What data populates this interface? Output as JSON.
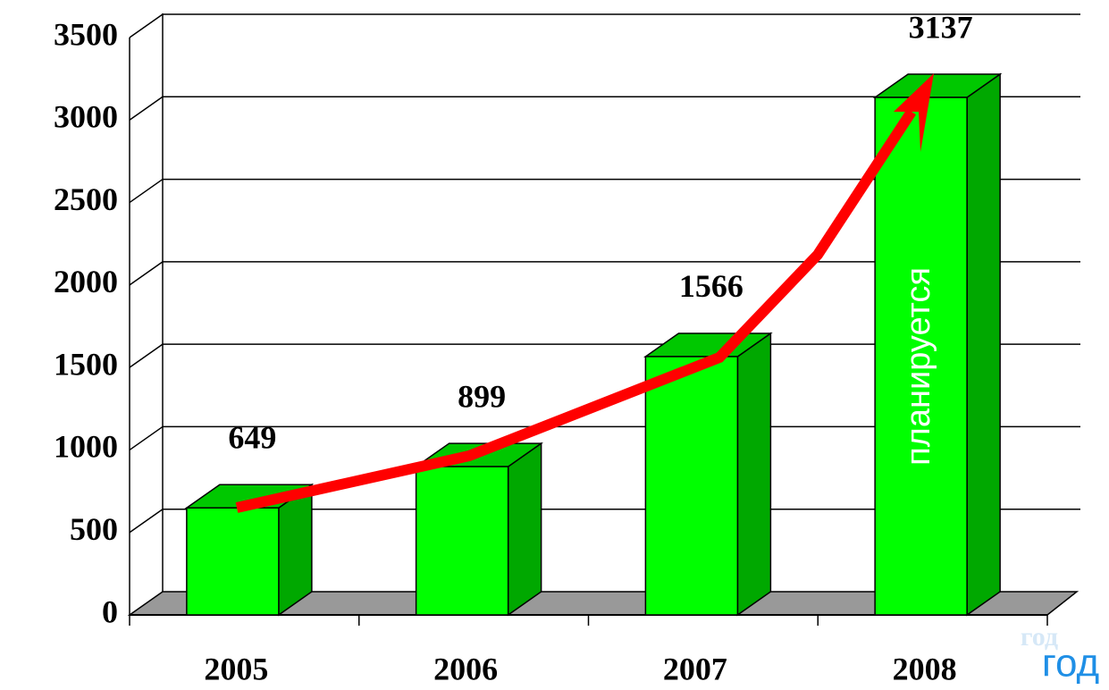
{
  "chart_data": {
    "type": "bar3d",
    "categories": [
      "2005",
      "2006",
      "2007",
      "2008"
    ],
    "values": [
      649,
      899,
      1566,
      3137
    ],
    "color": "#00ff00",
    "ylim": [
      0,
      3500
    ],
    "yticks": [
      0,
      500,
      1000,
      1500,
      2000,
      2500,
      3000,
      3500
    ],
    "grid": true,
    "annotation": "планируется",
    "x_label": "год",
    "x_label_faint": "год"
  }
}
